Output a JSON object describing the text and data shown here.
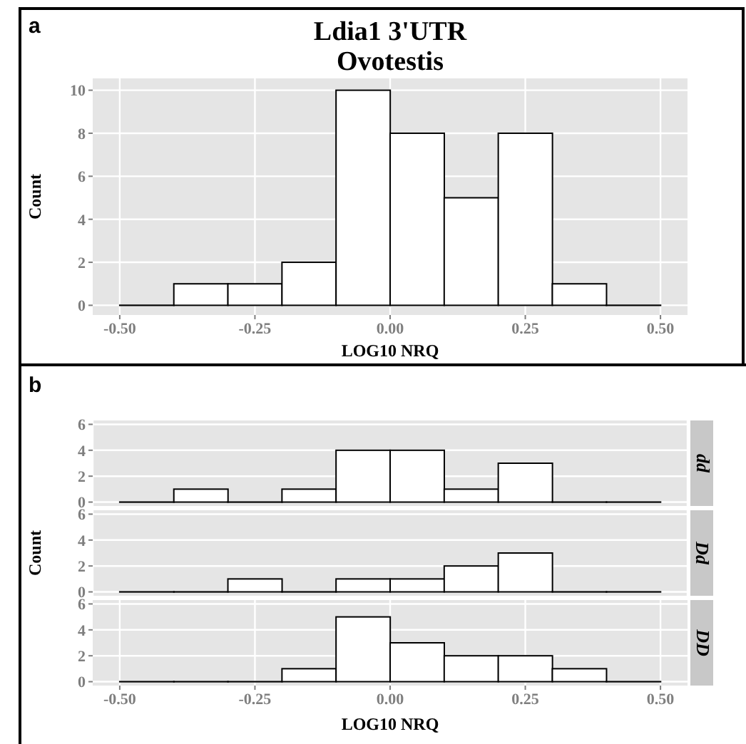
{
  "chart_data": [
    {
      "type": "histogram",
      "title": "Ldia1 3'UTR\nOvotestis",
      "xlabel": "LOG10 NRQ",
      "ylabel": "Count",
      "annotations": [
        "a"
      ],
      "bins": [
        -0.5,
        -0.4,
        -0.3,
        -0.2,
        -0.1,
        0,
        0.1,
        0.2,
        0.3,
        0.4,
        0.5
      ],
      "values": [
        0,
        1,
        1,
        2,
        10,
        8,
        5,
        8,
        1,
        0
      ],
      "color": "#ffffff",
      "xlim": [
        -0.55,
        0.55
      ],
      "ylim": [
        -0.45,
        10.55
      ],
      "xticks": [
        {
          "value": -0.5,
          "label": "-0.50"
        },
        {
          "value": -0.25,
          "label": "-0.25"
        },
        {
          "value": 0,
          "label": "0.00"
        },
        {
          "value": 0.25,
          "label": "0.25"
        },
        {
          "value": 0.5,
          "label": "0.50"
        }
      ],
      "yticks": [
        0,
        2,
        4,
        6,
        8,
        10
      ],
      "grid": true
    },
    {
      "type": "histogram",
      "title": "dd",
      "annotations": [
        "b"
      ],
      "bins": [
        -0.5,
        -0.4,
        -0.3,
        -0.2,
        -0.1,
        0,
        0.1,
        0.2,
        0.3,
        0.4,
        0.5
      ],
      "values": [
        0,
        1,
        0,
        1,
        4,
        4,
        1,
        3,
        0,
        0
      ],
      "color": "#ffffff",
      "xlim": [
        -0.55,
        0.55
      ],
      "ylim": [
        -0.3,
        6.3
      ],
      "yticks": [
        0,
        2,
        4,
        6
      ],
      "grid": true,
      "tick_labels": "y"
    },
    {
      "type": "histogram",
      "title": "Dd",
      "ylabel": "Count",
      "bins": [
        -0.5,
        -0.4,
        -0.3,
        -0.2,
        -0.1,
        0,
        0.1,
        0.2,
        0.3,
        0.4,
        0.5
      ],
      "values": [
        0,
        0,
        1,
        0,
        1,
        1,
        2,
        3,
        0,
        0
      ],
      "color": "#ffffff",
      "xlim": [
        -0.55,
        0.55
      ],
      "ylim": [
        -0.3,
        6.3
      ],
      "yticks": [
        0,
        2,
        4,
        6
      ],
      "grid": true,
      "tick_labels": "y"
    },
    {
      "type": "histogram",
      "title": "DD",
      "xlabel": "LOG10 NRQ",
      "bins": [
        -0.5,
        -0.4,
        -0.3,
        -0.2,
        -0.1,
        0,
        0.1,
        0.2,
        0.3,
        0.4,
        0.5
      ],
      "values": [
        0,
        0,
        0,
        1,
        5,
        3,
        2,
        2,
        1,
        0
      ],
      "color": "#ffffff",
      "xlim": [
        -0.55,
        0.55
      ],
      "ylim": [
        -0.3,
        6.3
      ],
      "xticks": [
        {
          "value": -0.5,
          "label": "-0.50"
        },
        {
          "value": -0.25,
          "label": "-0.25"
        },
        {
          "value": 0,
          "label": "0.00"
        },
        {
          "value": 0.25,
          "label": "0.25"
        },
        {
          "value": 0.5,
          "label": "0.50"
        }
      ],
      "yticks": [
        0,
        2,
        4,
        6
      ],
      "grid": true
    }
  ]
}
